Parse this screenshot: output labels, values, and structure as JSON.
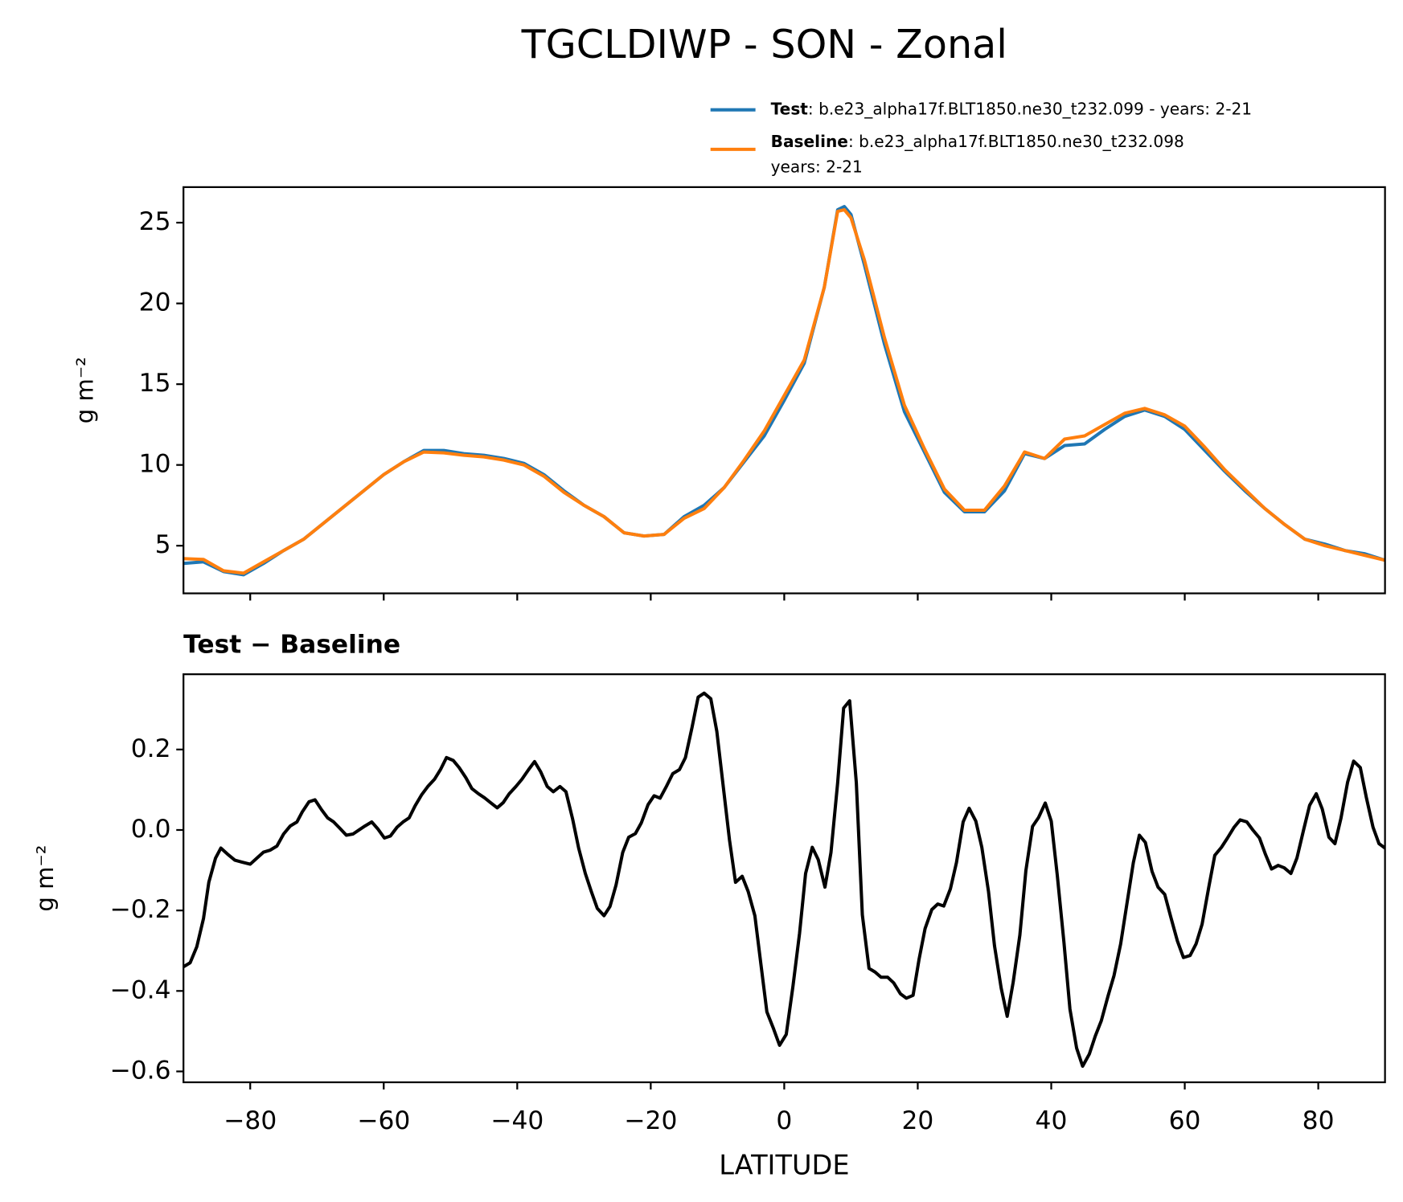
{
  "chart_data": [
    {
      "type": "line",
      "title": "TGCLDIWP - SON - Zonal",
      "ylabel": "g m⁻²",
      "xlim": [
        -90,
        90
      ],
      "ylim": [
        2.05,
        27.2
      ],
      "yticks": [
        5,
        10,
        15,
        20,
        25
      ],
      "x": [
        -90,
        -87,
        -84,
        -81,
        -78,
        -75,
        -72,
        -69,
        -66,
        -63,
        -60,
        -57,
        -54,
        -51,
        -48,
        -45,
        -42,
        -39,
        -36,
        -33,
        -30,
        -27,
        -24,
        -21,
        -18,
        -15,
        -12,
        -9,
        -6,
        -3,
        0,
        3,
        6,
        8,
        9,
        10,
        12,
        15,
        18,
        21,
        24,
        27,
        30,
        33,
        36,
        39,
        42,
        45,
        48,
        51,
        54,
        57,
        60,
        63,
        66,
        69,
        72,
        75,
        78,
        81,
        84,
        87,
        90
      ],
      "series": [
        {
          "name": "Test",
          "detail": [
            ": b.e23_alpha17f.BLT1850.ne30_t232.099 - years: 2-21"
          ],
          "color": "#1f77b4",
          "values": [
            3.9,
            4.0,
            3.4,
            3.2,
            3.9,
            4.7,
            5.4,
            6.4,
            7.4,
            8.4,
            9.4,
            10.2,
            10.9,
            10.9,
            10.7,
            10.6,
            10.4,
            10.1,
            9.4,
            8.4,
            7.5,
            6.8,
            5.8,
            5.6,
            5.7,
            6.8,
            7.5,
            8.6,
            10.2,
            11.8,
            14.0,
            16.3,
            21.0,
            25.8,
            26.0,
            25.5,
            22.4,
            17.5,
            13.3,
            10.8,
            8.3,
            7.1,
            7.1,
            8.4,
            10.7,
            10.4,
            11.2,
            11.3,
            12.2,
            13.0,
            13.4,
            13.0,
            12.2,
            10.9,
            9.6,
            8.4,
            7.3,
            6.3,
            5.4,
            5.1,
            4.7,
            4.5,
            4.1
          ]
        },
        {
          "name": "Baseline",
          "detail": [
            ": b.e23_alpha17f.BLT1850.ne30_t232.098",
            "years: 2-21"
          ],
          "color": "#ff7f0e",
          "values": [
            4.2,
            4.15,
            3.45,
            3.3,
            4.0,
            4.7,
            5.4,
            6.4,
            7.4,
            8.4,
            9.4,
            10.2,
            10.8,
            10.75,
            10.6,
            10.5,
            10.3,
            10.0,
            9.3,
            8.3,
            7.5,
            6.8,
            5.8,
            5.6,
            5.7,
            6.7,
            7.3,
            8.6,
            10.3,
            12.1,
            14.3,
            16.5,
            21.0,
            25.7,
            25.8,
            25.3,
            22.7,
            17.9,
            13.7,
            11.0,
            8.5,
            7.2,
            7.2,
            8.7,
            10.8,
            10.4,
            11.6,
            11.8,
            12.5,
            13.2,
            13.5,
            13.1,
            12.4,
            11.1,
            9.7,
            8.5,
            7.3,
            6.3,
            5.4,
            5.0,
            4.7,
            4.4,
            4.1
          ]
        }
      ]
    },
    {
      "type": "line",
      "title": "Test − Baseline",
      "ylabel": "g m⁻²",
      "xlabel": "LATITUDE",
      "xlim": [
        -90,
        90
      ],
      "ylim": [
        -0.627,
        0.387
      ],
      "xticks": [
        {
          "value": -80,
          "label": "−80"
        },
        {
          "value": -60,
          "label": "−60"
        },
        {
          "value": -40,
          "label": "−40"
        },
        {
          "value": -20,
          "label": "−20"
        },
        0,
        20,
        40,
        60,
        80
      ],
      "yticks": [
        {
          "value": -0.6,
          "label": "−0.6"
        },
        {
          "value": -0.4,
          "label": "−0.4"
        },
        {
          "value": -0.2,
          "label": "−0.2"
        },
        {
          "value": 0,
          "label": "0.0"
        },
        0.2
      ],
      "x": [
        -90,
        -89,
        -88,
        -87,
        -86.2,
        -85.2,
        -84.4,
        -83.4,
        -82.3,
        -81.2,
        -80,
        -79,
        -78,
        -77,
        -76,
        -75,
        -74,
        -73,
        -72.2,
        -71.2,
        -70.3,
        -69.3,
        -68.4,
        -67.5,
        -66.5,
        -65.6,
        -64.6,
        -63.7,
        -62.8,
        -61.8,
        -60.9,
        -59.9,
        -59,
        -58,
        -57.1,
        -56.2,
        -55.3,
        -54.3,
        -53.4,
        -52.4,
        -51.5,
        -50.6,
        -49.6,
        -48.7,
        -47.7,
        -46.8,
        -45.8,
        -44.9,
        -44,
        -43,
        -42.1,
        -41.2,
        -40.2,
        -39.3,
        -38.3,
        -37.4,
        -36.5,
        -35.5,
        -34.6,
        -33.6,
        -32.7,
        -31.7,
        -30.8,
        -29.8,
        -28.9,
        -28,
        -27,
        -26.1,
        -25.2,
        -24.2,
        -23.3,
        -22.3,
        -21.4,
        -20.4,
        -19.5,
        -18.6,
        -17.6,
        -16.7,
        -15.7,
        -14.8,
        -13.8,
        -12.9,
        -12,
        -11,
        -10.1,
        -9.2,
        -8.2,
        -7.3,
        -6.3,
        -5.4,
        -4.4,
        -3.5,
        -2.6,
        -1.6,
        -0.7,
        0.3,
        1.3,
        2.3,
        3.2,
        4.2,
        5.1,
        6.1,
        7,
        8,
        8.9,
        9.8,
        10.8,
        11.7,
        12.7,
        13.6,
        14.5,
        15.5,
        16.4,
        17.4,
        18.3,
        19.3,
        20.2,
        21.1,
        22.1,
        23,
        23.9,
        24.9,
        25.8,
        26.8,
        27.7,
        28.7,
        29.6,
        30.6,
        31.5,
        32.5,
        33.4,
        34.3,
        35.3,
        36.2,
        37.2,
        38.1,
        39.1,
        40,
        40.9,
        41.9,
        42.8,
        43.8,
        44.7,
        45.7,
        46.6,
        47.5,
        48.5,
        49.4,
        50.4,
        51.3,
        52.3,
        53.2,
        54.1,
        55.1,
        56,
        57,
        57.9,
        58.9,
        59.8,
        60.8,
        61.7,
        62.6,
        63.6,
        64.5,
        65.5,
        66.4,
        67.4,
        68.3,
        69.3,
        70.2,
        71.2,
        72.1,
        73,
        74,
        74.9,
        75.9,
        76.8,
        77.8,
        78.7,
        79.7,
        80.6,
        81.6,
        82.5,
        83.4,
        84.4,
        85.3,
        86.3,
        87.2,
        88.2,
        89.1,
        90
      ],
      "series": [
        {
          "color": "#000000",
          "values": [
            -0.34,
            -0.33,
            -0.29,
            -0.22,
            -0.13,
            -0.07,
            -0.045,
            -0.06,
            -0.075,
            -0.08,
            -0.085,
            -0.07,
            -0.055,
            -0.05,
            -0.04,
            -0.01,
            0.01,
            0.02,
            0.045,
            0.07,
            0.075,
            0.05,
            0.03,
            0.02,
            0.003,
            -0.013,
            -0.01,
            0,
            0.01,
            0.02,
            0.003,
            -0.02,
            -0.015,
            0.007,
            0.02,
            0.03,
            0.06,
            0.088,
            0.108,
            0.126,
            0.15,
            0.18,
            0.173,
            0.155,
            0.13,
            0.103,
            0.09,
            0.08,
            0.068,
            0.055,
            0.068,
            0.09,
            0.108,
            0.126,
            0.15,
            0.17,
            0.145,
            0.108,
            0.095,
            0.108,
            0.095,
            0.027,
            -0.045,
            -0.108,
            -0.153,
            -0.195,
            -0.213,
            -0.19,
            -0.137,
            -0.056,
            -0.018,
            -0.009,
            0.018,
            0.063,
            0.085,
            0.079,
            0.11,
            0.14,
            0.15,
            0.18,
            0.256,
            0.33,
            0.34,
            0.326,
            0.245,
            0.117,
            -0.025,
            -0.13,
            -0.115,
            -0.153,
            -0.213,
            -0.333,
            -0.452,
            -0.494,
            -0.535,
            -0.508,
            -0.389,
            -0.256,
            -0.108,
            -0.043,
            -0.074,
            -0.142,
            -0.056,
            0.117,
            0.303,
            0.321,
            0.117,
            -0.211,
            -0.344,
            -0.353,
            -0.366,
            -0.366,
            -0.38,
            -0.407,
            -0.418,
            -0.411,
            -0.321,
            -0.245,
            -0.198,
            -0.184,
            -0.189,
            -0.146,
            -0.081,
            0.02,
            0.054,
            0.022,
            -0.043,
            -0.153,
            -0.288,
            -0.393,
            -0.463,
            -0.378,
            -0.261,
            -0.101,
            0.009,
            0.031,
            0.067,
            0.022,
            -0.112,
            -0.279,
            -0.445,
            -0.542,
            -0.587,
            -0.557,
            -0.512,
            -0.474,
            -0.413,
            -0.362,
            -0.283,
            -0.187,
            -0.081,
            -0.013,
            -0.031,
            -0.103,
            -0.142,
            -0.16,
            -0.216,
            -0.276,
            -0.317,
            -0.312,
            -0.283,
            -0.234,
            -0.142,
            -0.063,
            -0.043,
            -0.02,
            0.007,
            0.025,
            0.02,
            0,
            -0.02,
            -0.061,
            -0.097,
            -0.088,
            -0.094,
            -0.108,
            -0.07,
            0,
            0.061,
            0.09,
            0.052,
            -0.018,
            -0.034,
            0.029,
            0.119,
            0.171,
            0.155,
            0.081,
            0.007,
            -0.034,
            -0.045
          ]
        }
      ]
    }
  ]
}
